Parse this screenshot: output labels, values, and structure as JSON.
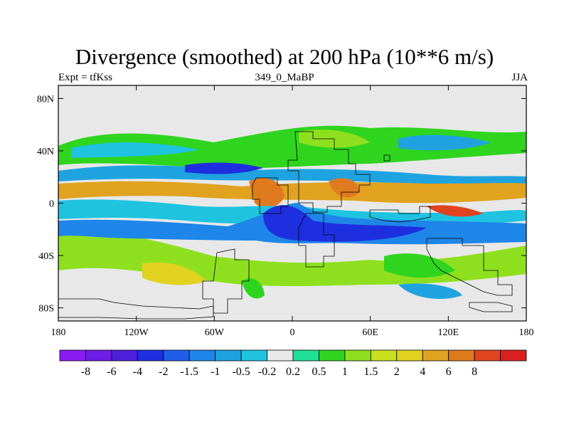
{
  "title": "Divergence (smoothed) at 200 hPa (10**6 m/s)",
  "subtitle_left": "Expt = tfKss",
  "subtitle_center": "349_0_MaBP",
  "subtitle_right": "JJA",
  "y_axis_labels": [
    "80N",
    "40N",
    "0",
    "40S",
    "80S"
  ],
  "x_axis_labels": [
    "180",
    "120W",
    "60W",
    "0",
    "60E",
    "120E",
    "180"
  ],
  "colorbar": {
    "colors": [
      "#8a1bf0",
      "#6e1ee6",
      "#4d1fd9",
      "#1e2fe0",
      "#1f5fe8",
      "#1e86e8",
      "#1fa3e0",
      "#1fc3e0",
      "#e8e8e8",
      "#1fe095",
      "#2fd41f",
      "#8ee01f",
      "#c8e01f",
      "#e0d21f",
      "#e0a21f",
      "#e07a1f",
      "#e0441f",
      "#d91f1f"
    ],
    "labels": [
      "-8",
      "-6",
      "-4",
      "-2",
      "-1.5",
      "-1",
      "-0.5",
      "-0.2",
      "0.2",
      "0.5",
      "1",
      "1.5",
      "2",
      "4",
      "6",
      "8"
    ]
  }
}
